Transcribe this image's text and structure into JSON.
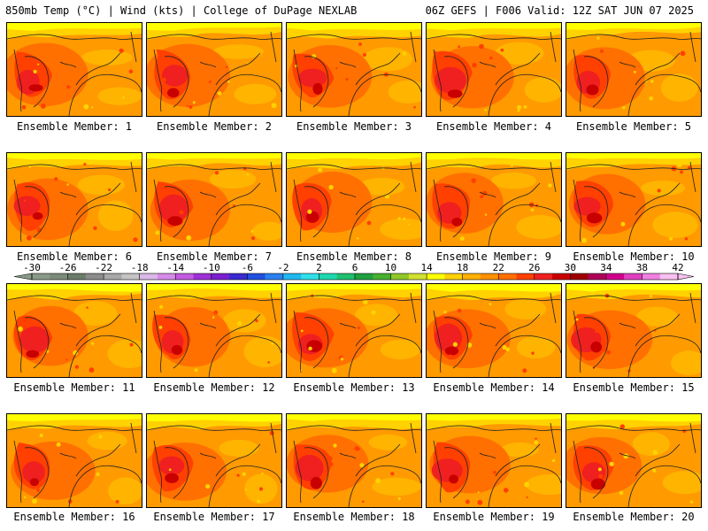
{
  "header": {
    "left_title": "850mb Temp (°C) | Wind (kts) | College of DuPage NEXLAB",
    "right_title": "06Z GEFS | F006 Valid: 12Z SAT JUN 07 2025"
  },
  "colorbar": {
    "labels": [
      "-30",
      "-26",
      "-22",
      "-18",
      "-14",
      "-10",
      "-6",
      "-2",
      "2",
      "6",
      "10",
      "14",
      "18",
      "22",
      "26",
      "30",
      "34",
      "38",
      "42"
    ],
    "colors": [
      "#8a9a88",
      "#7b8b79",
      "#6c7c6a",
      "#8c8c8c",
      "#a8a8a8",
      "#c4c4c4",
      "#d9b8e8",
      "#d68ce8",
      "#c35ce0",
      "#a030d8",
      "#7a20d0",
      "#3a2ad0",
      "#2050e0",
      "#2a80f0",
      "#20b8f0",
      "#30e0e8",
      "#20d8b0",
      "#20c070",
      "#20a040",
      "#48b030",
      "#90c828",
      "#d0e030",
      "#ffff00",
      "#ffd000",
      "#ffb000",
      "#ff9000",
      "#ff7000",
      "#ff4000",
      "#f02020",
      "#c80000",
      "#a00000",
      "#b00058",
      "#d0008c",
      "#e040c0",
      "#f080e0",
      "#f8c0f0"
    ]
  },
  "members": [
    {
      "label": "Ensemble Member: 1"
    },
    {
      "label": "Ensemble Member: 2"
    },
    {
      "label": "Ensemble Member: 3"
    },
    {
      "label": "Ensemble Member: 4"
    },
    {
      "label": "Ensemble Member: 5"
    },
    {
      "label": "Ensemble Member: 6"
    },
    {
      "label": "Ensemble Member: 7"
    },
    {
      "label": "Ensemble Member: 8"
    },
    {
      "label": "Ensemble Member: 9"
    },
    {
      "label": "Ensemble Member: 10"
    },
    {
      "label": "Ensemble Member: 11"
    },
    {
      "label": "Ensemble Member: 12"
    },
    {
      "label": "Ensemble Member: 13"
    },
    {
      "label": "Ensemble Member: 14"
    },
    {
      "label": "Ensemble Member: 15"
    },
    {
      "label": "Ensemble Member: 16"
    },
    {
      "label": "Ensemble Member: 17"
    },
    {
      "label": "Ensemble Member: 18"
    },
    {
      "label": "Ensemble Member: 19"
    },
    {
      "label": "Ensemble Member: 20"
    }
  ]
}
